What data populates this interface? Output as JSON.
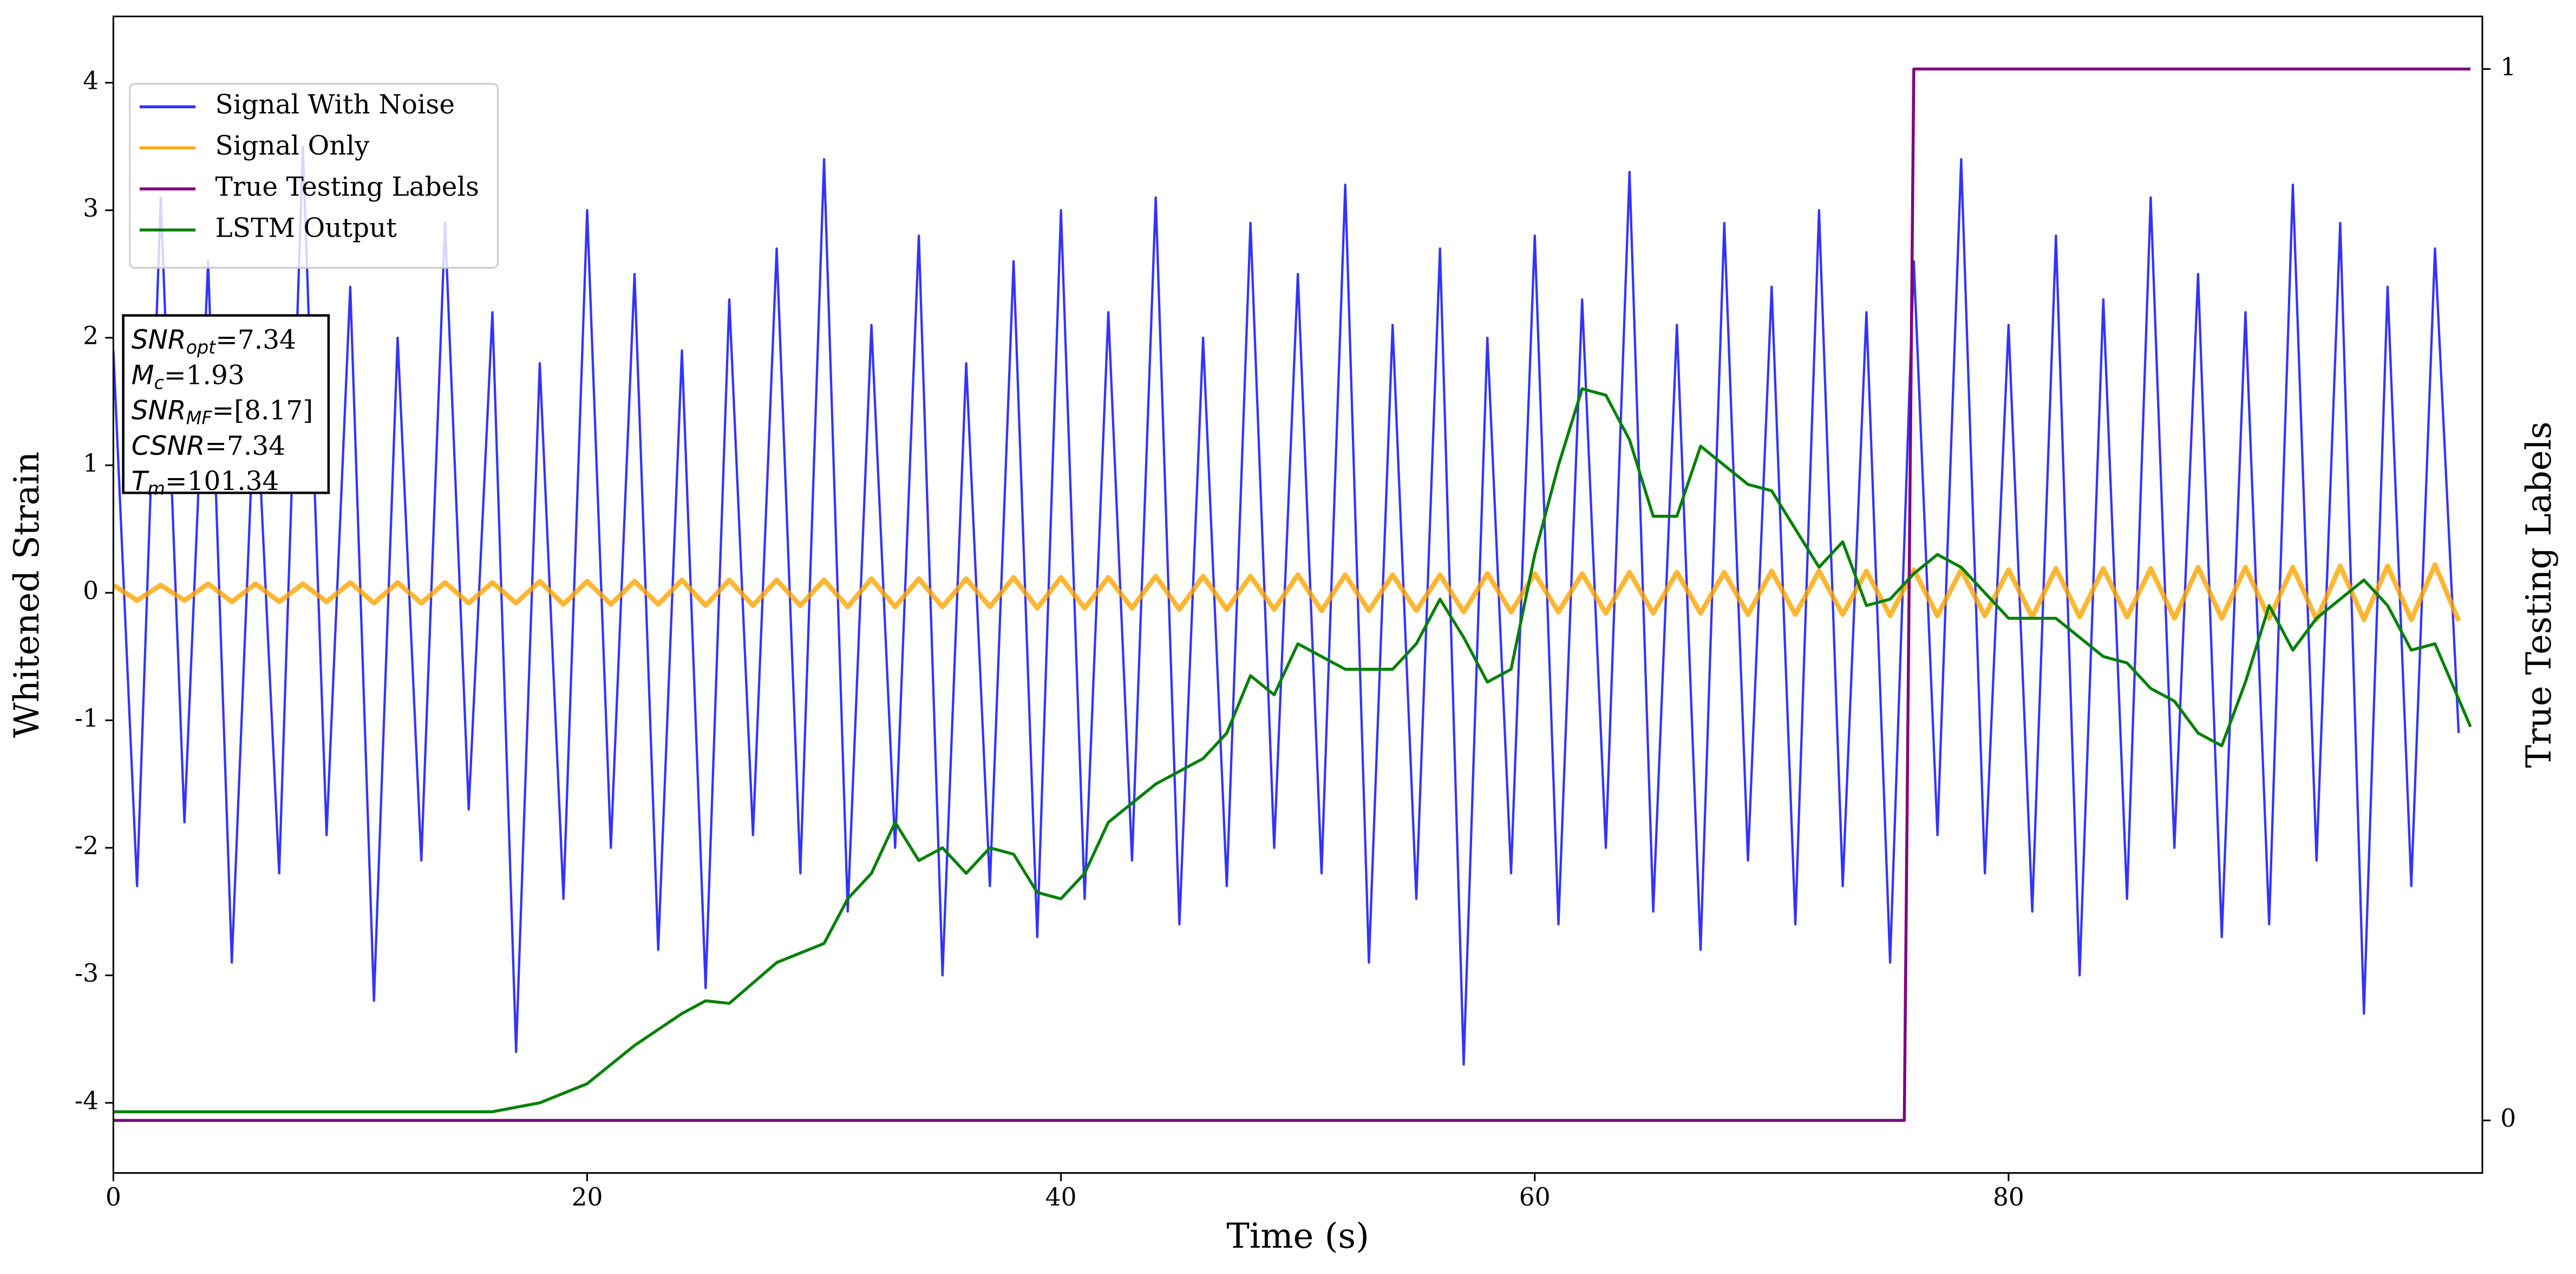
{
  "chart_data": {
    "type": "line",
    "xlabel": "Time (s)",
    "ylabel": "Whitened Strain",
    "y2label": "True Testing Labels",
    "xlim": [
      0,
      100
    ],
    "ylim": [
      -4.55,
      4.52
    ],
    "y2lim": [
      -0.05,
      1.05
    ],
    "xticks": [
      0,
      20,
      40,
      60,
      80
    ],
    "yticks": [
      -4,
      -3,
      -2,
      -1,
      0,
      1,
      2,
      3,
      4
    ],
    "y2ticks": [
      0,
      1
    ],
    "legend": "upper left",
    "x": [
      0,
      1,
      2,
      3,
      4,
      5,
      6,
      7,
      8,
      9,
      10,
      11,
      12,
      13,
      14,
      15,
      16,
      17,
      18,
      19,
      20,
      21,
      22,
      23,
      24,
      25,
      26,
      27,
      28,
      29,
      30,
      31,
      32,
      33,
      34,
      35,
      36,
      37,
      38,
      39,
      40,
      41,
      42,
      43,
      44,
      45,
      46,
      47,
      48,
      49,
      50,
      51,
      52,
      53,
      54,
      55,
      56,
      57,
      58,
      59,
      60,
      61,
      62,
      63,
      64,
      65,
      66,
      67,
      68,
      69,
      70,
      71,
      72,
      73,
      74,
      75,
      76,
      77,
      78,
      79,
      80,
      81,
      82,
      83,
      84,
      85,
      86,
      87,
      88,
      89,
      90,
      91,
      92,
      93,
      94,
      95,
      96,
      97,
      98,
      99
    ],
    "series": [
      {
        "name": "Signal With Noise",
        "color": "#3333ff",
        "values": [
          1.9,
          -2.3,
          3.1,
          -1.8,
          2.6,
          -2.9,
          1.7,
          -2.2,
          3.5,
          -1.9,
          2.4,
          -3.2,
          2.0,
          -2.1,
          2.9,
          -1.7,
          2.2,
          -3.6,
          1.8,
          -2.4,
          3.0,
          -2.0,
          2.5,
          -2.8,
          1.9,
          -3.1,
          2.3,
          -1.9,
          2.7,
          -2.2,
          3.4,
          -2.5,
          2.1,
          -2.0,
          2.8,
          -3.0,
          1.8,
          -2.3,
          2.6,
          -2.7,
          3.0,
          -2.4,
          2.2,
          -2.1,
          3.1,
          -2.6,
          2.0,
          -2.3,
          2.9,
          -2.0,
          2.5,
          -2.2,
          3.2,
          -2.9,
          2.1,
          -2.4,
          2.7,
          -3.7,
          2.0,
          -2.2,
          2.8,
          -2.6,
          2.3,
          -2.0,
          3.3,
          -2.5,
          2.1,
          -2.8,
          2.9,
          -2.1,
          2.4,
          -2.6,
          3.0,
          -2.3,
          2.2,
          -2.9,
          2.6,
          -1.9,
          3.4,
          -2.2,
          2.1,
          -2.5,
          2.8,
          -3.0,
          2.3,
          -2.4,
          3.1,
          -2.0,
          2.5,
          -2.7,
          2.2,
          -2.6,
          3.2,
          -2.1,
          2.9,
          -3.3,
          2.4,
          -2.3,
          2.7,
          -1.1
        ]
      },
      {
        "name": "Signal Only",
        "color": "#ffa500",
        "values": [
          0.06,
          -0.06,
          0.06,
          -0.06,
          0.07,
          -0.07,
          0.07,
          -0.07,
          0.07,
          -0.07,
          0.08,
          -0.08,
          0.08,
          -0.08,
          0.08,
          -0.08,
          0.08,
          -0.08,
          0.09,
          -0.09,
          0.09,
          -0.09,
          0.09,
          -0.09,
          0.1,
          -0.1,
          0.1,
          -0.1,
          0.1,
          -0.1,
          0.1,
          -0.11,
          0.11,
          -0.11,
          0.11,
          -0.11,
          0.11,
          -0.11,
          0.12,
          -0.12,
          0.12,
          -0.12,
          0.12,
          -0.12,
          0.13,
          -0.13,
          0.13,
          -0.13,
          0.13,
          -0.13,
          0.14,
          -0.14,
          0.14,
          -0.14,
          0.14,
          -0.14,
          0.14,
          -0.15,
          0.15,
          -0.15,
          0.15,
          -0.15,
          0.15,
          -0.16,
          0.16,
          -0.16,
          0.16,
          -0.16,
          0.16,
          -0.17,
          0.17,
          -0.17,
          0.17,
          -0.17,
          0.17,
          -0.18,
          0.18,
          -0.18,
          0.18,
          -0.18,
          0.18,
          -0.19,
          0.19,
          -0.19,
          0.19,
          -0.19,
          0.19,
          -0.2,
          0.2,
          -0.2,
          0.2,
          -0.2,
          0.2,
          -0.21,
          0.21,
          -0.21,
          0.21,
          -0.21,
          0.22,
          -0.22
        ]
      },
      {
        "name": "True Testing Labels",
        "color": "#800080",
        "axis": "y2",
        "x": [
          0,
          75.6,
          76,
          99.5
        ],
        "values": [
          0,
          0,
          1,
          1
        ]
      },
      {
        "name": "LSTM Output",
        "color": "#008000",
        "x": [
          0,
          10,
          16,
          18,
          20,
          22,
          24,
          25,
          26,
          28,
          30,
          31,
          32,
          33,
          34,
          35,
          36,
          37,
          38,
          39,
          40,
          41,
          42,
          44,
          46,
          47,
          48,
          49,
          50,
          52,
          54,
          55,
          56,
          57,
          58,
          59,
          60,
          61,
          62,
          63,
          64,
          65,
          66,
          67,
          68,
          69,
          70,
          71,
          72,
          73,
          74,
          75,
          76,
          77,
          78,
          79,
          80,
          82,
          84,
          85,
          86,
          87,
          88,
          89,
          90,
          91,
          92,
          93,
          94,
          95,
          96,
          97,
          98,
          99.5
        ],
        "values": [
          -4.07,
          -4.07,
          -4.07,
          -4.0,
          -3.85,
          -3.55,
          -3.3,
          -3.2,
          -3.22,
          -2.9,
          -2.75,
          -2.4,
          -2.2,
          -1.8,
          -2.1,
          -2.0,
          -2.2,
          -2.0,
          -2.05,
          -2.35,
          -2.4,
          -2.2,
          -1.8,
          -1.5,
          -1.3,
          -1.1,
          -0.65,
          -0.8,
          -0.4,
          -0.6,
          -0.6,
          -0.4,
          -0.05,
          -0.35,
          -0.7,
          -0.6,
          0.3,
          1.0,
          1.6,
          1.55,
          1.2,
          0.6,
          0.6,
          1.15,
          1.0,
          0.85,
          0.8,
          0.5,
          0.2,
          0.4,
          -0.1,
          -0.05,
          0.15,
          0.3,
          0.2,
          0.0,
          -0.2,
          -0.2,
          -0.5,
          -0.55,
          -0.75,
          -0.85,
          -1.1,
          -1.2,
          -0.7,
          -0.1,
          -0.45,
          -0.2,
          -0.05,
          0.1,
          -0.1,
          -0.45,
          -0.4,
          -1.05
        ]
      }
    ],
    "annotations": [
      {
        "text": "SNR",
        "sub": "opt",
        "rest": "=7.34"
      },
      {
        "text": "M",
        "sub": "c",
        "rest": "=1.93"
      },
      {
        "text": "SNR",
        "sub": "MF",
        "rest": "=[8.17]"
      },
      {
        "text": "CSNR",
        "rest": "=7.34"
      },
      {
        "text": "T",
        "sub": "m",
        "rest": "=101.34"
      }
    ]
  }
}
